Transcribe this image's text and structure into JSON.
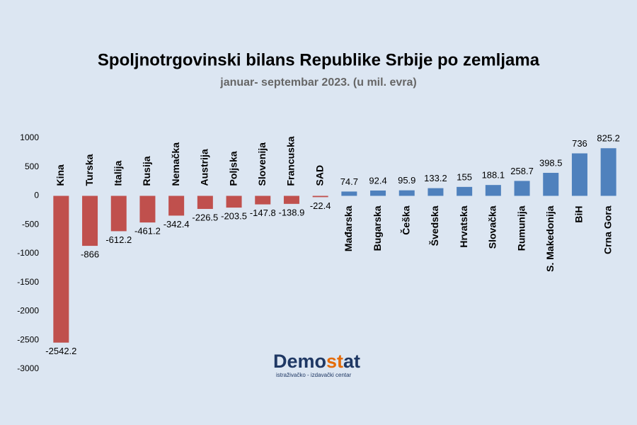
{
  "chart_data": {
    "type": "bar",
    "title": "Spoljnotrgovinski bilans Republike Srbije po zemljama",
    "subtitle": "januar- septembar 2023. (u mil. evra)",
    "categories": [
      "Kina",
      "Turska",
      "Italija",
      "Rusija",
      "Nemačka",
      "Austrija",
      "Poljska",
      "Slovenija",
      "Francuska",
      "SAD",
      "Mađarska",
      "Bugarska",
      "Češka",
      "Švedska",
      "Hrvatska",
      "Slovačka",
      "Rumunija",
      "S. Makedonija",
      "BiH",
      "Crna Gora"
    ],
    "values": [
      -2542.2,
      -866,
      -612.2,
      -461.2,
      -342.4,
      -226.5,
      -203.5,
      -147.8,
      -138.9,
      -22.4,
      74.7,
      92.4,
      95.9,
      133.2,
      155,
      188.1,
      258.7,
      398.5,
      736,
      825.2
    ],
    "colors": [
      "#c0504d",
      "#c0504d",
      "#c0504d",
      "#c0504d",
      "#c0504d",
      "#c0504d",
      "#c0504d",
      "#c0504d",
      "#c0504d",
      "#c0504d",
      "#4f81bd",
      "#4f81bd",
      "#4f81bd",
      "#4f81bd",
      "#4f81bd",
      "#4f81bd",
      "#4f81bd",
      "#4f81bd",
      "#4f81bd",
      "#4f81bd"
    ],
    "ylim": [
      -3000,
      1000
    ],
    "yticks": [
      1000,
      500,
      0,
      -500,
      -1000,
      -1500,
      -2000,
      -2500,
      -3000
    ],
    "grid": false
  },
  "logo": {
    "parts": [
      "Demo",
      "st",
      "at"
    ],
    "tagline": "istraživačko - izdavački centar"
  }
}
